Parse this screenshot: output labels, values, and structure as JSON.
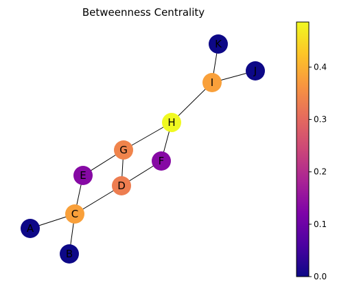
{
  "title": "Betweenness Centrality",
  "colormap": "plasma",
  "colorbar": {
    "range": [
      0.0,
      0.486
    ],
    "ticks": [
      0.0,
      0.1,
      0.2,
      0.3,
      0.4
    ],
    "tick_labels": [
      "0.0",
      "0.1",
      "0.2",
      "0.3",
      "0.4"
    ]
  },
  "nodes": [
    {
      "id": "A",
      "value": 0.0
    },
    {
      "id": "B",
      "value": 0.0
    },
    {
      "id": "C",
      "value": 0.378
    },
    {
      "id": "D",
      "value": 0.33
    },
    {
      "id": "E",
      "value": 0.133
    },
    {
      "id": "F",
      "value": 0.133
    },
    {
      "id": "G",
      "value": 0.34
    },
    {
      "id": "H",
      "value": 0.486
    },
    {
      "id": "I",
      "value": 0.378
    },
    {
      "id": "J",
      "value": 0.0
    },
    {
      "id": "K",
      "value": 0.0
    }
  ],
  "edges": [
    [
      "A",
      "C"
    ],
    [
      "B",
      "C"
    ],
    [
      "C",
      "E"
    ],
    [
      "C",
      "D"
    ],
    [
      "E",
      "G"
    ],
    [
      "D",
      "G"
    ],
    [
      "D",
      "F"
    ],
    [
      "G",
      "H"
    ],
    [
      "F",
      "H"
    ],
    [
      "H",
      "I"
    ],
    [
      "I",
      "K"
    ],
    [
      "I",
      "J"
    ]
  ]
}
